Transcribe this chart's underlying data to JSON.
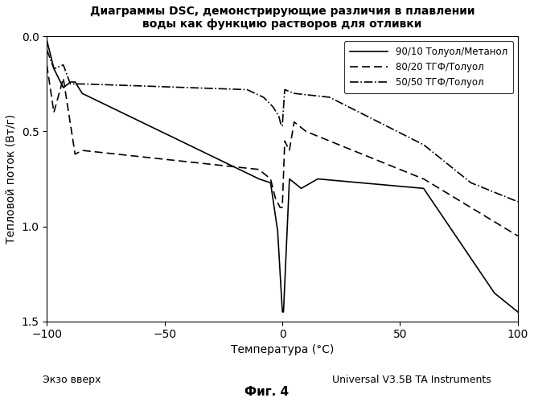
{
  "title": "Диаграммы DSC, демонстрирующие различия в плавлении\nводы как функцию растворов для отливки",
  "xlabel": "Температура (°C)",
  "ylabel": "Тепловой поток (Вт/г)",
  "xlim": [
    -100,
    100
  ],
  "ylim": [
    -1.5,
    0.0
  ],
  "xticks": [
    -100,
    -50,
    0,
    50,
    100
  ],
  "ytick_positions": [
    0.0,
    -0.5,
    -1.0,
    -1.5
  ],
  "ytick_labels": [
    "0.0",
    "0.5",
    "1.0",
    "1.5"
  ],
  "legend_entries": [
    "90/10 Толуол/Метанол",
    "80/20 ТГФ/Толуол",
    "50/50 ТГФ/Толуол"
  ],
  "bottom_left_label": "Экзо вверх",
  "bottom_right_label": "Universal V3.5B TA Instruments",
  "figure_label": "Фиг. 4",
  "background_color": "#ffffff",
  "line_color": "#000000"
}
